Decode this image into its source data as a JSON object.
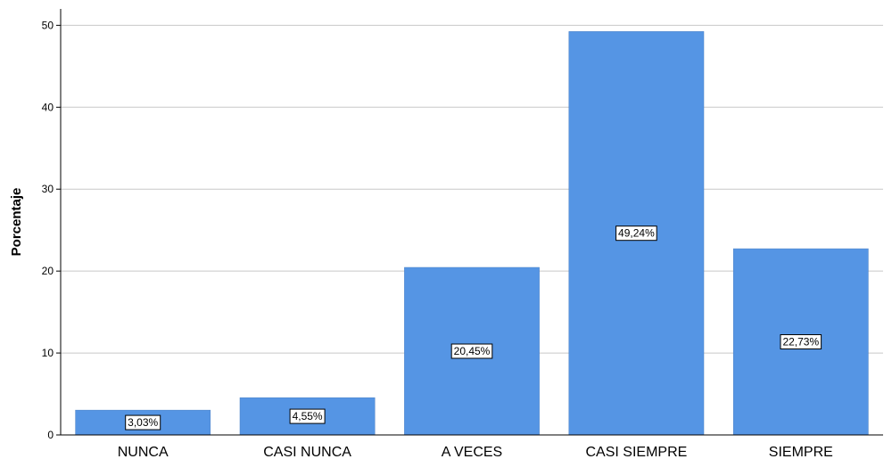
{
  "chart_data": {
    "type": "bar",
    "categories": [
      "NUNCA",
      "CASI NUNCA",
      "A VECES",
      "CASI SIEMPRE",
      "SIEMPRE"
    ],
    "values": [
      3.03,
      4.55,
      20.45,
      49.24,
      22.73
    ],
    "data_labels": [
      "3,03%",
      "4,55%",
      "20,45%",
      "49,24%",
      "22,73%"
    ],
    "title": "",
    "xlabel": "",
    "ylabel": "Porcentaje",
    "ylim": [
      0,
      52
    ],
    "yticks": [
      0,
      10,
      20,
      30,
      40,
      50
    ],
    "ytick_labels": [
      "0",
      "10",
      "20",
      "30",
      "40",
      "50"
    ],
    "grid": true,
    "bar_color": "#5595e4",
    "gridline_color": "#c8c8c8"
  }
}
